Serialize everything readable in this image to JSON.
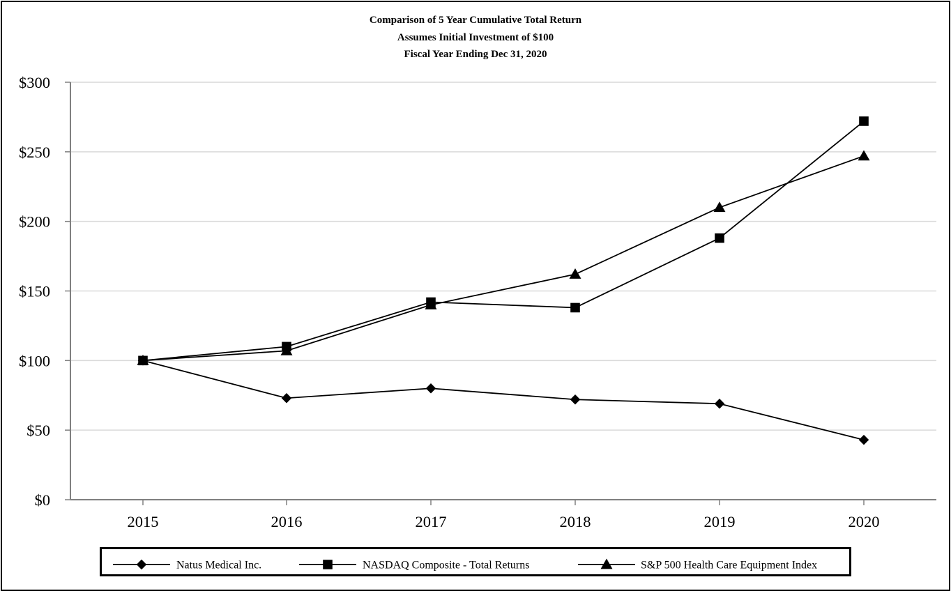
{
  "chart_data": {
    "type": "line",
    "title": "Comparison of 5 Year Cumulative Total Return",
    "subtitle": [
      "Assumes Initial Investment of $100",
      "Fiscal Year Ending Dec 31, 2020"
    ],
    "xlabel": "",
    "ylabel": "",
    "x": [
      "2015",
      "2016",
      "2017",
      "2018",
      "2019",
      "2020"
    ],
    "ylim": [
      0,
      300
    ],
    "yticks": [
      0,
      50,
      100,
      150,
      200,
      250,
      300
    ],
    "ytick_labels": [
      "$0",
      "$50",
      "$100",
      "$150",
      "$200",
      "$250",
      "$300"
    ],
    "grid": true,
    "legend_position": "bottom",
    "series": [
      {
        "name": "Natus Medical Inc.",
        "marker": "diamond",
        "values": [
          100,
          73,
          80,
          72,
          69,
          43
        ]
      },
      {
        "name": "NASDAQ Composite - Total Returns",
        "marker": "square",
        "values": [
          100,
          110,
          142,
          138,
          188,
          272
        ]
      },
      {
        "name": "S&P 500 Health Care Equipment Index",
        "marker": "triangle",
        "values": [
          100,
          107,
          140,
          162,
          210,
          247
        ]
      }
    ],
    "colors": {
      "line": "#000000",
      "grid": "#d9d9d9",
      "axis": "#808080"
    }
  }
}
